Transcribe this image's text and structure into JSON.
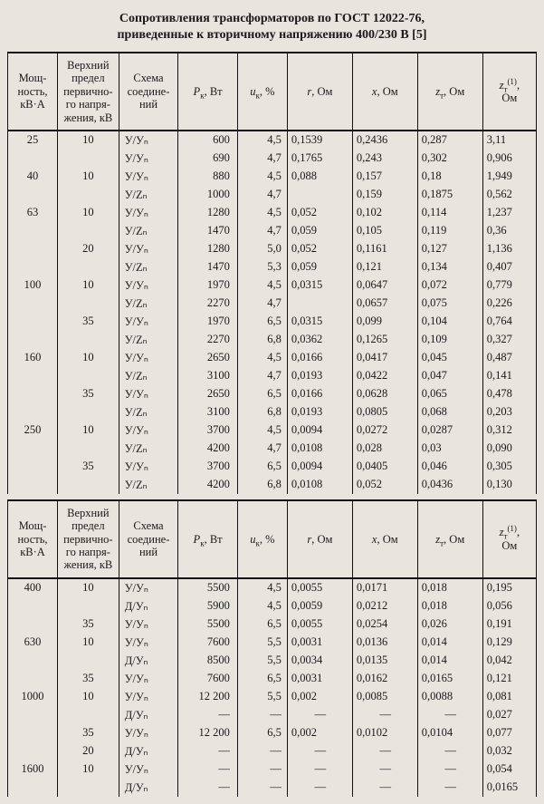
{
  "title_line1": "Сопротивления трансформаторов по ГОСТ 12022-76,",
  "title_line2": "приведенные к вторичному напряжению 400/230 В [5]",
  "headers": {
    "h0": "Мощ-\nность,\nкВ·А",
    "h1": "Верхний\nпредел\nпервично-\nго напря-\nжения, кВ",
    "h2": "Схема\nсоедине-\nний",
    "h3_html": "<i>P</i><sub>к</sub>, Вт",
    "h4_html": "<i>u</i><sub>к</sub>, %",
    "h5_html": "<i>r</i>, Ом",
    "h6_html": "<i>x</i>, Ом",
    "h7_html": "<i>z</i><sub>т</sub>, Ом",
    "h8_html": "<i>z</i><sub>т</sub><sup>(1)</sup>,<br>Ом"
  },
  "colwidths": [
    "52",
    "64",
    "62",
    "62",
    "52",
    "68",
    "68",
    "68",
    "56"
  ],
  "rows1": [
    [
      "25",
      "10",
      "У/Уₙ",
      "600",
      "4,5",
      "0,1539",
      "0,2436",
      "0,287",
      "3,11"
    ],
    [
      "",
      "",
      "У/Уₙ",
      "690",
      "4,7",
      "0,1765",
      "0,243",
      "0,302",
      "0,906"
    ],
    [
      "40",
      "10",
      "У/Уₙ",
      "880",
      "4,5",
      "0,088",
      "0,157",
      "0,18",
      "1,949"
    ],
    [
      "",
      "",
      "У/Zₙ",
      "1000",
      "4,7",
      "",
      "0,159",
      "0,1875",
      "0,562"
    ],
    [
      "63",
      "10",
      "У/Уₙ",
      "1280",
      "4,5",
      "0,052",
      "0,102",
      "0,114",
      "1,237"
    ],
    [
      "",
      "",
      "У/Zₙ",
      "1470",
      "4,7",
      "0,059",
      "0,105",
      "0,119",
      "0,36"
    ],
    [
      "",
      "20",
      "У/Уₙ",
      "1280",
      "5,0",
      "0,052",
      "0,1161",
      "0,127",
      "1,136"
    ],
    [
      "",
      "",
      "У/Zₙ",
      "1470",
      "5,3",
      "0,059",
      "0,121",
      "0,134",
      "0,407"
    ],
    [
      "100",
      "10",
      "У/Уₙ",
      "1970",
      "4,5",
      "0,0315",
      "0,0647",
      "0,072",
      "0,779"
    ],
    [
      "",
      "",
      "У/Zₙ",
      "2270",
      "4,7",
      "",
      "0,0657",
      "0,075",
      "0,226"
    ],
    [
      "",
      "35",
      "У/Уₙ",
      "1970",
      "6,5",
      "0,0315",
      "0,099",
      "0,104",
      "0,764"
    ],
    [
      "",
      "",
      "У/Zₙ",
      "2270",
      "6,8",
      "0,0362",
      "0,1265",
      "0,109",
      "0,327"
    ],
    [
      "160",
      "10",
      "У/Уₙ",
      "2650",
      "4,5",
      "0,0166",
      "0,0417",
      "0,045",
      "0,487"
    ],
    [
      "",
      "",
      "У/Zₙ",
      "3100",
      "4,7",
      "0,0193",
      "0,0422",
      "0,047",
      "0,141"
    ],
    [
      "",
      "35",
      "У/Уₙ",
      "2650",
      "6,5",
      "0,0166",
      "0,0628",
      "0,065",
      "0,478"
    ],
    [
      "",
      "",
      "У/Zₙ",
      "3100",
      "6,8",
      "0,0193",
      "0,0805",
      "0,068",
      "0,203"
    ],
    [
      "250",
      "10",
      "У/Уₙ",
      "3700",
      "4,5",
      "0,0094",
      "0,0272",
      "0,0287",
      "0,312"
    ],
    [
      "",
      "",
      "У/Zₙ",
      "4200",
      "4,7",
      "0,0108",
      "0,028",
      "0,03",
      "0,090"
    ],
    [
      "",
      "35",
      "У/Уₙ",
      "3700",
      "6,5",
      "0,0094",
      "0,0405",
      "0,046",
      "0,305"
    ],
    [
      "",
      "",
      "У/Zₙ",
      "4200",
      "6,8",
      "0,0108",
      "0,052",
      "0,0436",
      "0,130"
    ]
  ],
  "rows2": [
    [
      "400",
      "10",
      "У/Уₙ",
      "5500",
      "4,5",
      "0,0055",
      "0,0171",
      "0,018",
      "0,195"
    ],
    [
      "",
      "",
      "Д/Уₙ",
      "5900",
      "4,5",
      "0,0059",
      "0,0212",
      "0,018",
      "0,056"
    ],
    [
      "",
      "35",
      "У/Уₙ",
      "5500",
      "6,5",
      "0,0055",
      "0,0254",
      "0,026",
      "0,191"
    ],
    [
      "630",
      "10",
      "У/Уₙ",
      "7600",
      "5,5",
      "0,0031",
      "0,0136",
      "0,014",
      "0,129"
    ],
    [
      "",
      "",
      "Д/Уₙ",
      "8500",
      "5,5",
      "0,0034",
      "0,0135",
      "0,014",
      "0,042"
    ],
    [
      "",
      "35",
      "У/Уₙ",
      "7600",
      "6,5",
      "0,0031",
      "0,0162",
      "0,0165",
      "0,121"
    ],
    [
      "1000",
      "10",
      "У/Уₙ",
      "12 200",
      "5,5",
      "0,002",
      "0,0085",
      "0,0088",
      "0,081"
    ],
    [
      "",
      "",
      "Д/Уₙ",
      "—",
      "—",
      "—",
      "—",
      "—",
      "0,027"
    ],
    [
      "",
      "35",
      "У/Уₙ",
      "12 200",
      "6,5",
      "0,002",
      "0,0102",
      "0,0104",
      "0,077"
    ],
    [
      "",
      "20",
      "Д/Уₙ",
      "—",
      "—",
      "—",
      "—",
      "—",
      "0,032"
    ],
    [
      "1600",
      "10",
      "У/Уₙ",
      "—",
      "—",
      "—",
      "—",
      "—",
      "0,054"
    ],
    [
      "",
      "",
      "Д/Уₙ",
      "—",
      "—",
      "—",
      "—",
      "—",
      "0,0165"
    ]
  ]
}
